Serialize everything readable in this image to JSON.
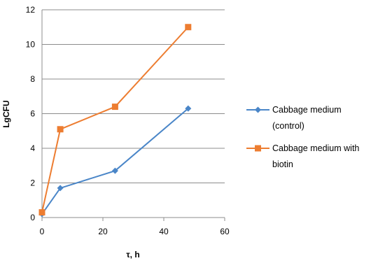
{
  "chart_data": {
    "type": "line",
    "title": "",
    "xlabel": "τ, h",
    "ylabel": "LgCFU",
    "xlim": [
      0,
      60
    ],
    "ylim": [
      0,
      12
    ],
    "x_ticks": [
      0,
      20,
      40,
      60
    ],
    "y_ticks": [
      0,
      2,
      4,
      6,
      8,
      10,
      12
    ],
    "grid": "horizontal",
    "legend_position": "right",
    "series": [
      {
        "name_lines": [
          "Cabbage medium",
          "(control)"
        ],
        "color": "#4a86c8",
        "marker": "diamond",
        "x": [
          0,
          6,
          24,
          48
        ],
        "y": [
          0.2,
          1.7,
          2.7,
          6.3
        ]
      },
      {
        "name_lines": [
          "Cabbage medium with",
          "biotin"
        ],
        "color": "#ed7d31",
        "marker": "square",
        "x": [
          0,
          6,
          24,
          48
        ],
        "y": [
          0.3,
          5.1,
          6.4,
          11.0
        ]
      }
    ]
  }
}
